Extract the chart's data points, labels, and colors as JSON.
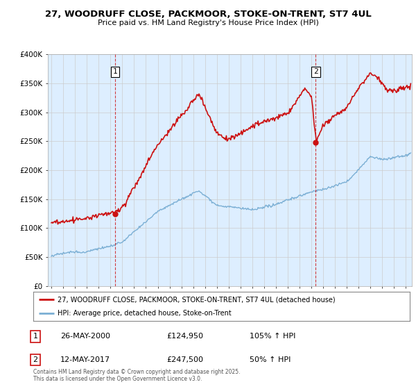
{
  "title": "27, WOODRUFF CLOSE, PACKMOOR, STOKE-ON-TRENT, ST7 4UL",
  "subtitle": "Price paid vs. HM Land Registry's House Price Index (HPI)",
  "ylabel_ticks": [
    "£0",
    "£50K",
    "£100K",
    "£150K",
    "£200K",
    "£250K",
    "£300K",
    "£350K",
    "£400K"
  ],
  "ylim": [
    0,
    400000
  ],
  "xlim_start": 1994.7,
  "xlim_end": 2025.5,
  "sale1_date": 2000.4,
  "sale1_price": 124950,
  "sale1_label": "1",
  "sale2_date": 2017.37,
  "sale2_price": 247500,
  "sale2_label": "2",
  "legend_line1": "27, WOODRUFF CLOSE, PACKMOOR, STOKE-ON-TRENT, ST7 4UL (detached house)",
  "legend_line2": "HPI: Average price, detached house, Stoke-on-Trent",
  "annotation1_date": "26-MAY-2000",
  "annotation1_price": "£124,950",
  "annotation1_hpi": "105% ↑ HPI",
  "annotation2_date": "12-MAY-2017",
  "annotation2_price": "£247,500",
  "annotation2_hpi": "50% ↑ HPI",
  "footer": "Contains HM Land Registry data © Crown copyright and database right 2025.\nThis data is licensed under the Open Government Licence v3.0.",
  "hpi_color": "#7bafd4",
  "price_color": "#cc1111",
  "vline_color": "#cc1111",
  "grid_color": "#cccccc",
  "background_color": "#ffffff",
  "plot_bg_color": "#ddeeff"
}
